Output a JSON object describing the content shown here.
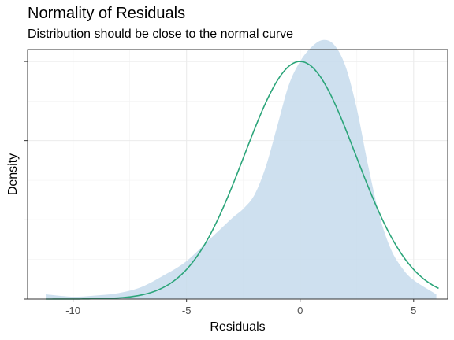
{
  "chart_data": {
    "type": "area",
    "title": "Normality of Residuals",
    "subtitle": "Distribution should be close to the normal curve",
    "xlabel": "Residuals",
    "ylabel": "Density",
    "xlim": [
      -12,
      6.5
    ],
    "ylim": [
      0,
      1.05
    ],
    "x_ticks": [
      -10,
      -5,
      0,
      5
    ],
    "x_tick_labels": [
      "-10",
      "-5",
      "0",
      "5"
    ],
    "y_ticks": [
      0,
      0.333,
      0.667,
      1.0
    ],
    "grid": true,
    "series": [
      {
        "kind": "density",
        "color": "#c6dbec",
        "x": [
          -11.2,
          -10,
          -9,
          -8,
          -7,
          -6,
          -5,
          -4,
          -3,
          -2.5,
          -2,
          -1.5,
          -1,
          -0.5,
          0,
          0.5,
          1,
          1.5,
          2,
          2.5,
          3,
          3.5,
          4,
          4.5,
          5,
          6
        ],
        "y": [
          0.02,
          0.01,
          0.015,
          0.025,
          0.05,
          0.1,
          0.16,
          0.25,
          0.34,
          0.38,
          0.44,
          0.56,
          0.73,
          0.9,
          1.0,
          1.06,
          1.09,
          1.07,
          0.98,
          0.8,
          0.56,
          0.35,
          0.21,
          0.13,
          0.08,
          0.02
        ]
      },
      {
        "kind": "normal-curve",
        "color": "#2ca57a",
        "mean": 0,
        "sd": 2.45,
        "peak": 1.0,
        "x_range": [
          -11.2,
          6.1
        ]
      }
    ]
  }
}
